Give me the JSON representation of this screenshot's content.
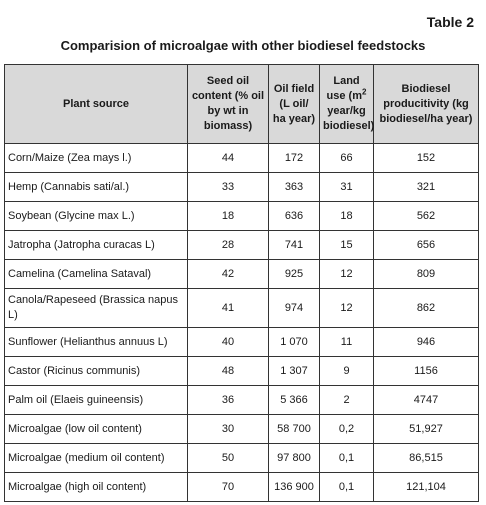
{
  "table_number": "Table 2",
  "title": "Comparision of microalgae with other biodiesel feedstocks",
  "headers": {
    "plant_source": "Plant source",
    "seed_oil": "Seed oil content (% oil by wt in biomass)",
    "oil_field": "Oil field (L oil/ ha year)",
    "land_use_pre": "Land use (m",
    "land_use_sup": "2",
    "land_use_post": " year/kg biodiesel)",
    "productivity": "Biodiesel producitivity (kg biodiesel/ha year)"
  },
  "rows": [
    {
      "source": "Corn/Maize (Zea mays  l.)",
      "seed_oil": "44",
      "oil_field": "172",
      "land_use": "66",
      "productivity": "152"
    },
    {
      "source": "Hemp (Cannabis sati/al.)",
      "seed_oil": "33",
      "oil_field": "363",
      "land_use": "31",
      "productivity": "321"
    },
    {
      "source": "Soybean (Glycine max L.)",
      "seed_oil": "18",
      "oil_field": "636",
      "land_use": "18",
      "productivity": "562"
    },
    {
      "source": "Jatropha (Jatropha curacas L)",
      "seed_oil": "28",
      "oil_field": "741",
      "land_use": "15",
      "productivity": "656"
    },
    {
      "source": "Camelina (Camelina Sataval)",
      "seed_oil": "42",
      "oil_field": "925",
      "land_use": "12",
      "productivity": "809"
    },
    {
      "source": "Canola/Rapeseed (Brassica napus L)",
      "seed_oil": "41",
      "oil_field": "974",
      "land_use": "12",
      "productivity": "862"
    },
    {
      "source": "Sunflower (Helianthus annuus L)",
      "seed_oil": "40",
      "oil_field": "1 070",
      "land_use": "11",
      "productivity": "946"
    },
    {
      "source": "Castor (Ricinus communis)",
      "seed_oil": "48",
      "oil_field": "1 307",
      "land_use": "9",
      "productivity": "1156"
    },
    {
      "source": "Palm oil (Elaeis guineensis)",
      "seed_oil": "36",
      "oil_field": "5 366",
      "land_use": "2",
      "productivity": "4747"
    },
    {
      "source": "Microalgae (low oil content)",
      "seed_oil": "30",
      "oil_field": "58 700",
      "land_use": "0,2",
      "productivity": "51,927"
    },
    {
      "source": "Microalgae (medium oil content)",
      "seed_oil": "50",
      "oil_field": "97 800",
      "land_use": "0,1",
      "productivity": "86,515"
    },
    {
      "source": "Microalgae (high oil content)",
      "seed_oil": "70",
      "oil_field": "136 900",
      "land_use": "0,1",
      "productivity": "121,104"
    }
  ]
}
